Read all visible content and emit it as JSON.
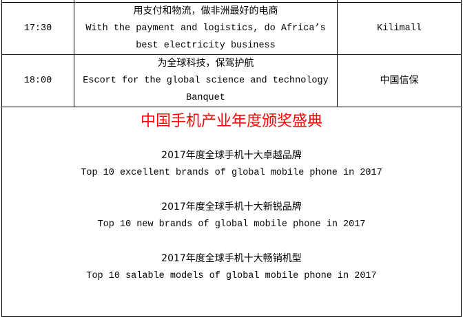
{
  "schedule": [
    {
      "time": "17:30",
      "topic_zh": "用支付和物流，做非洲最好的电商",
      "topic_en_1": "With the payment and logistics, do Africa’s",
      "topic_en_2": "best electricity business",
      "company": "Kilimall"
    },
    {
      "time": "18:00",
      "topic_zh": "为全球科技，保驾护航",
      "topic_en_1": "Escort for the global science and technology",
      "topic_en_2": "Banquet",
      "company": "中国信保"
    }
  ],
  "awards": {
    "title": "中国手机产业年度颁奖盛典",
    "title_color": "#ff0000",
    "items": [
      {
        "zh": "2017年度全球手机十大卓越品牌",
        "en": "Top 10 excellent brands of global mobile phone in 2017"
      },
      {
        "zh": "2017年度全球手机十大新锐品牌",
        "en": "Top 10 new brands of global mobile phone in 2017"
      },
      {
        "zh": "2017年度全球手机十大畅销机型",
        "en": "Top 10 salable models of global mobile phone in 2017"
      }
    ]
  }
}
